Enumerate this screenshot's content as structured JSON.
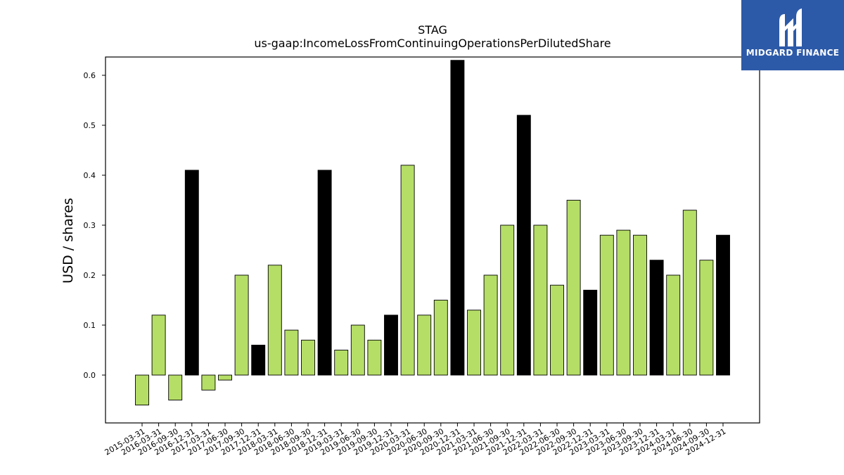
{
  "chart_data": {
    "type": "bar",
    "title": "STAG",
    "subtitle": "us-gaap:IncomeLossFromContinuingOperationsPerDilutedShare",
    "ylabel": "USD / shares",
    "xlabel": "",
    "ylim": [
      -0.095,
      0.635
    ],
    "yticks": [
      0.0,
      0.1,
      0.2,
      0.3,
      0.4,
      0.5,
      0.6
    ],
    "grid": false,
    "categories": [
      "2015-03-31",
      "2016-03-31",
      "2016-09-30",
      "2016-12-31",
      "2017-03-31",
      "2017-06-30",
      "2017-09-30",
      "2017-12-31",
      "2018-03-31",
      "2018-06-30",
      "2018-09-30",
      "2018-12-31",
      "2019-03-31",
      "2019-06-30",
      "2019-09-30",
      "2019-12-31",
      "2020-03-31",
      "2020-06-30",
      "2020-09-30",
      "2020-12-31",
      "2021-03-31",
      "2021-06-30",
      "2021-09-30",
      "2021-12-31",
      "2022-03-31",
      "2022-06-30",
      "2022-09-30",
      "2022-12-31",
      "2023-03-31",
      "2023-06-30",
      "2023-09-30",
      "2023-12-31",
      "2024-03-31",
      "2024-06-30",
      "2024-09-30",
      "2024-12-31"
    ],
    "values": [
      -0.06,
      0.12,
      -0.05,
      0.41,
      -0.03,
      -0.01,
      0.2,
      0.06,
      0.22,
      0.09,
      0.07,
      0.41,
      0.05,
      0.1,
      0.07,
      0.12,
      0.42,
      0.12,
      0.15,
      0.63,
      0.13,
      0.2,
      0.3,
      0.52,
      0.3,
      0.18,
      0.35,
      0.17,
      0.28,
      0.29,
      0.28,
      0.23,
      0.2,
      0.33,
      0.23,
      0.28
    ],
    "colors": {
      "quarter": "#b5de66",
      "year_end": "#000000"
    },
    "year_end_bars": [
      3,
      7,
      11,
      15,
      19,
      23,
      27,
      31,
      35
    ]
  },
  "logo": {
    "text": "MIDGARD FINANCE",
    "icon": "midgard-logo-icon",
    "background": "#2d5aa8"
  }
}
